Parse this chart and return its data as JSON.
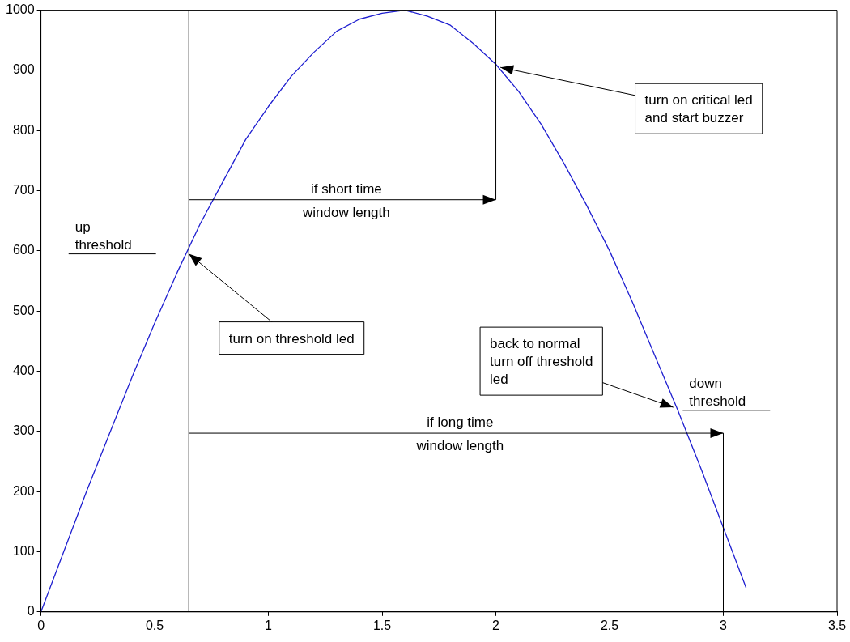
{
  "chart_data": {
    "type": "line",
    "x": [
      0,
      0.1,
      0.2,
      0.3,
      0.4,
      0.5,
      0.6,
      0.7,
      0.8,
      0.9,
      1,
      1.1,
      1.2,
      1.3,
      1.4,
      1.5,
      1.6,
      1.7,
      1.8,
      1.9,
      2,
      2.1,
      2.2,
      2.3,
      2.4,
      2.5,
      2.6,
      2.7,
      2.8,
      2.9,
      3,
      3.1
    ],
    "series": [
      {
        "color": "#1f1fd0",
        "values": [
          0,
          100,
          200,
          295,
          390,
          480,
          565,
          645,
          715,
          785,
          840,
          890,
          930,
          965,
          985,
          995,
          1000,
          990,
          975,
          945,
          910,
          865,
          810,
          745,
          675,
          600,
          515,
          425,
          335,
          240,
          140,
          40
        ]
      }
    ],
    "xlim": [
      0,
      3.5
    ],
    "xticks": [
      0,
      {
        "value": 0.5,
        "label": "0.5"
      },
      1,
      {
        "value": 1.5,
        "label": "1.5"
      },
      2,
      {
        "value": 2.5,
        "label": "2.5"
      },
      3,
      {
        "value": 3.5,
        "label": "3.5"
      }
    ],
    "ylim": [
      0,
      1000
    ],
    "yticks": [
      0,
      100,
      200,
      300,
      400,
      500,
      600,
      700,
      800,
      900,
      1000
    ],
    "grid": false,
    "legend": false,
    "marker": "none",
    "line_style": "solid",
    "ref_lines": [
      {
        "axis": "x",
        "value": 0.65,
        "color": "#000000"
      },
      {
        "axis": "x",
        "value": 2,
        "color": "#000000"
      },
      {
        "axis": "x",
        "value": 3,
        "color": "#000000"
      },
      {
        "axis": "y",
        "value": 595,
        "color": "#000000"
      },
      {
        "axis": "y",
        "value": 335,
        "color": "#000000"
      }
    ],
    "annotations": [
      {
        "text": "up\nthreshold",
        "x": 0.15,
        "y": 595
      },
      {
        "text": "down\nthreshold",
        "x": 2.85,
        "y": 335
      },
      "if short time\nwindow length",
      "if long time\nwindow length",
      {
        "text": "turn on threshold led",
        "x": 0.65,
        "y": 595
      },
      {
        "text": "turn on critical led\nand start buzzer",
        "x": 2.02,
        "y": 905
      },
      {
        "text": "back to normal\nturn off threshold\nled",
        "x": 2.78,
        "y": 340
      }
    ]
  }
}
